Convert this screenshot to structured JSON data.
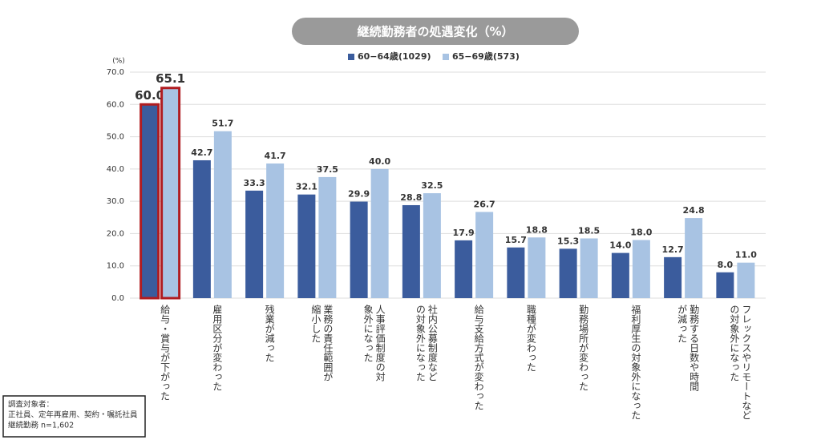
{
  "chart_data": {
    "type": "bar",
    "title": "継続勤務者の処遇変化（%）",
    "y_unit": "(%)",
    "categories": [
      [
        "給与・賞与が下がった"
      ],
      [
        "雇用区分が変わった"
      ],
      [
        "残業が減った"
      ],
      [
        "業務の責任範囲が",
        "縮小した"
      ],
      [
        "人事評価制度の対",
        "象外になった"
      ],
      [
        "社内公募制度など",
        "の対象外になった"
      ],
      [
        "給与支給方式が変わった"
      ],
      [
        "職種が変わった"
      ],
      [
        "勤務場所が変わった"
      ],
      [
        "福利厚生の対象外になった"
      ],
      [
        "勤務する日数や時間",
        "が減った"
      ],
      [
        "フレックスやリモートなど",
        "の対象外になった"
      ]
    ],
    "series": [
      {
        "name": "60−64歳(1029)",
        "color": "#3b5c9d",
        "values": [
          60.0,
          42.7,
          33.3,
          32.1,
          29.9,
          28.8,
          17.9,
          15.7,
          15.3,
          14.0,
          12.7,
          8.0
        ],
        "value_labels": [
          "60.0",
          "42.7",
          "33.3",
          "32.1",
          "29.9",
          "28.8",
          "17.9",
          "15.7",
          "15.3",
          "14.0",
          "12.7",
          "8.0"
        ]
      },
      {
        "name": "65−69歳(573)",
        "color": "#a8c3e3",
        "values": [
          65.1,
          51.7,
          41.7,
          37.5,
          40.0,
          32.5,
          26.7,
          18.8,
          18.5,
          18.0,
          24.8,
          11.0
        ],
        "value_labels": [
          "65.1",
          "51.7",
          "41.7",
          "37.5",
          "40.0",
          "32.5",
          "26.7",
          "18.8",
          "18.5",
          "18.0",
          "24.8",
          "11.0"
        ]
      }
    ],
    "highlight_category": 0,
    "highlight_color": "#b01c20",
    "ylim": [
      0,
      70
    ],
    "yticks": [
      {
        "value": 0,
        "label": "0.0"
      },
      {
        "value": 10,
        "label": "10.0"
      },
      {
        "value": 20,
        "label": "20.0"
      },
      {
        "value": 30,
        "label": "30.0"
      },
      {
        "value": 40,
        "label": "40.0"
      },
      {
        "value": 50,
        "label": "50.0"
      },
      {
        "value": 60,
        "label": "60.0"
      },
      {
        "value": 70,
        "label": "70.0"
      }
    ],
    "grid": true,
    "note": [
      "調査対象者：",
      "正社員、定年再雇用、契約・嘱託社員",
      "継続勤務 n=1,602"
    ]
  }
}
